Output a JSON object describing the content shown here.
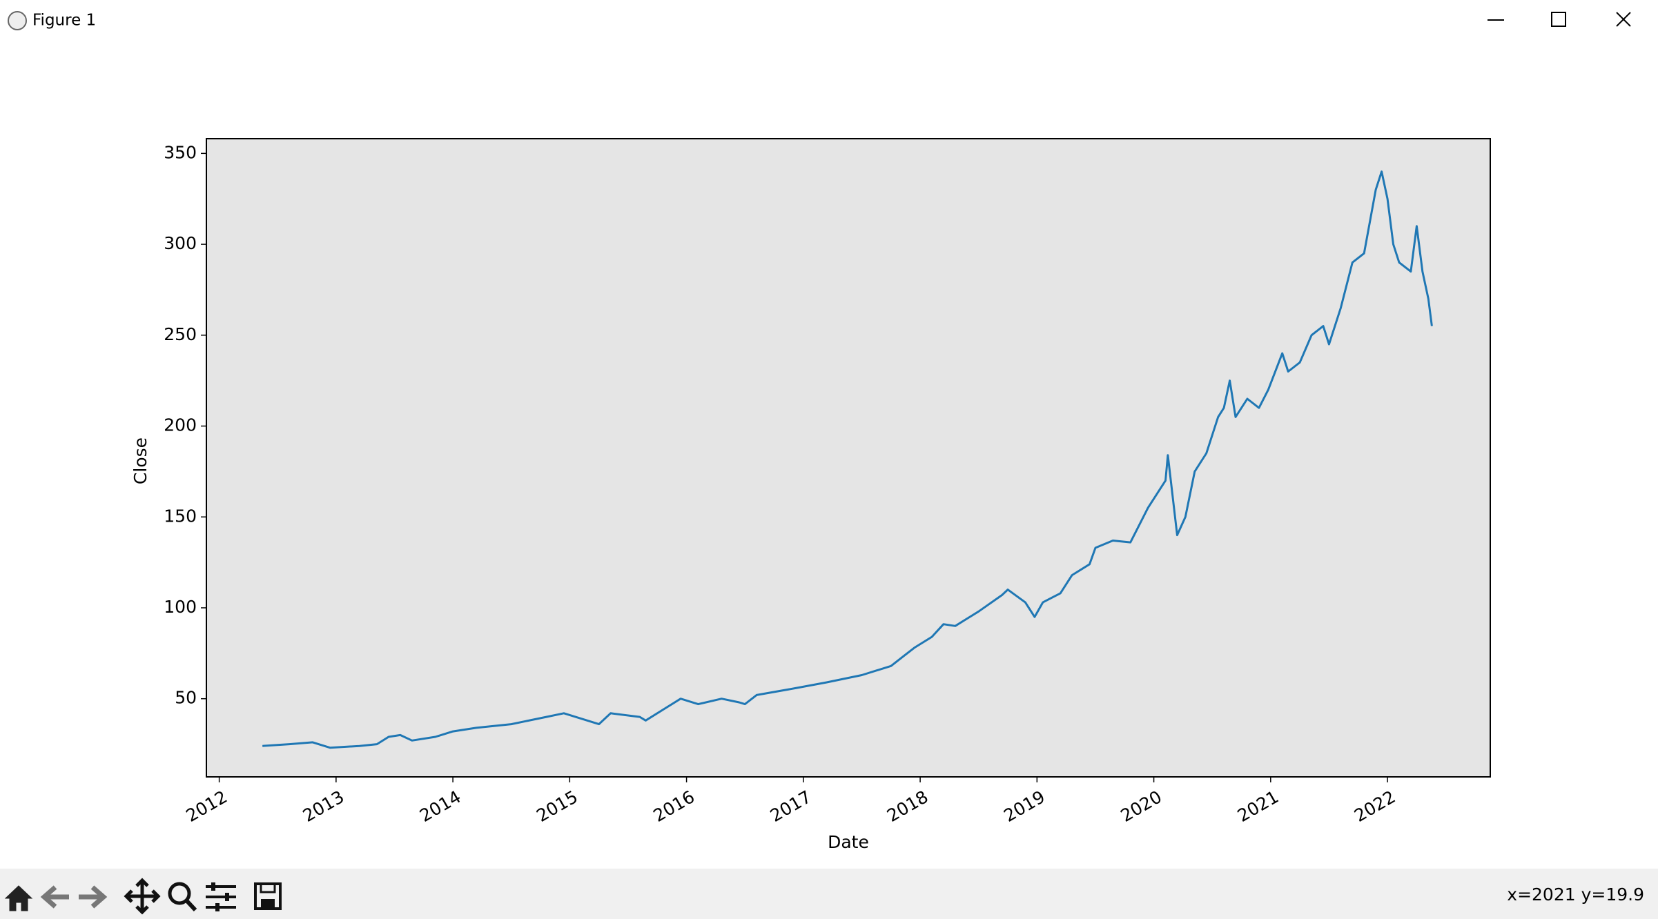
{
  "window": {
    "title": "Figure 1",
    "status": "x=2021 y=19.9"
  },
  "chart_data": {
    "type": "line",
    "x_label": "Date",
    "y_label": "Close",
    "color": "#1f77b4",
    "grid": false,
    "x": [
      2012.37,
      2012.6,
      2012.8,
      2012.95,
      2013.2,
      2013.35,
      2013.45,
      2013.55,
      2013.65,
      2013.85,
      2014.0,
      2014.2,
      2014.5,
      2014.8,
      2014.95,
      2015.1,
      2015.25,
      2015.35,
      2015.6,
      2015.65,
      2015.8,
      2015.95,
      2016.1,
      2016.3,
      2016.45,
      2016.5,
      2016.6,
      2016.95,
      2017.2,
      2017.5,
      2017.75,
      2017.85,
      2017.95,
      2018.1,
      2018.2,
      2018.3,
      2018.5,
      2018.7,
      2018.75,
      2018.9,
      2018.98,
      2019.05,
      2019.2,
      2019.3,
      2019.45,
      2019.5,
      2019.65,
      2019.8,
      2019.95,
      2020.1,
      2020.12,
      2020.2,
      2020.27,
      2020.35,
      2020.45,
      2020.55,
      2020.6,
      2020.65,
      2020.7,
      2020.8,
      2020.9,
      2020.98,
      2021.1,
      2021.15,
      2021.25,
      2021.35,
      2021.45,
      2021.5,
      2021.6,
      2021.7,
      2021.8,
      2021.9,
      2021.95,
      2022.0,
      2022.05,
      2022.1,
      2022.2,
      2022.25,
      2022.3,
      2022.35,
      2022.38
    ],
    "values": [
      24,
      25,
      26,
      23,
      24,
      25,
      29,
      30,
      27,
      29,
      32,
      34,
      36,
      40,
      42,
      39,
      36,
      42,
      40,
      38,
      44,
      50,
      47,
      50,
      48,
      47,
      52,
      56,
      59,
      63,
      68,
      73,
      78,
      84,
      91,
      90,
      98,
      107,
      110,
      103,
      95,
      103,
      108,
      118,
      124,
      133,
      137,
      136,
      155,
      170,
      184,
      140,
      150,
      175,
      185,
      205,
      210,
      225,
      205,
      215,
      210,
      220,
      240,
      230,
      235,
      250,
      255,
      245,
      265,
      290,
      295,
      330,
      340,
      325,
      300,
      290,
      285,
      310,
      285,
      270,
      255
    ],
    "xlim": [
      2011.89,
      2022.88
    ],
    "xticks": [
      2012,
      2013,
      2014,
      2015,
      2016,
      2017,
      2018,
      2019,
      2020,
      2021,
      2022
    ],
    "ylim": [
      7,
      358.1
    ],
    "yticks": [
      50,
      100,
      150,
      200,
      250,
      300,
      350
    ]
  }
}
